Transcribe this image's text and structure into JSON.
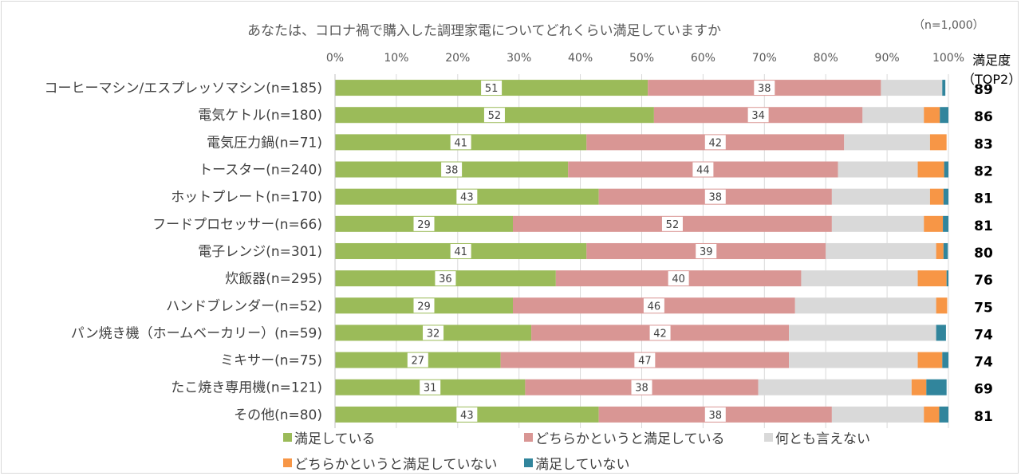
{
  "chart_data": {
    "type": "bar",
    "orientation": "horizontal",
    "stacked": "percent",
    "title": "あなたは、コロナ禍で購入した調理家電についてどれくらい満足していますか",
    "sample_note": "（n=1,000）",
    "xlim": [
      0,
      100
    ],
    "x_ticks": [
      "0%",
      "10%",
      "20%",
      "30%",
      "40%",
      "50%",
      "60%",
      "70%",
      "80%",
      "90%",
      "100%"
    ],
    "grid": true,
    "legend_position": "bottom",
    "categories": [
      "コーヒーマシン/エスプレッソマシン(n=185)",
      "電気ケトル(n=180)",
      "電気圧力鍋(n=71)",
      "トースター(n=240)",
      "ホットプレート(n=170)",
      "フードプロセッサー(n=66)",
      "電子レンジ(n=301)",
      "炊飯器(n=295)",
      "ハンドブレンダー(n=52)",
      "パン焼き機（ホームベーカリー）(n=59)",
      "ミキサー(n=75)",
      "たこ焼き専用機(n=121)",
      "その他(n=80)"
    ],
    "series": [
      {
        "name": "満足している",
        "color": "#9bbb59",
        "labeled": true,
        "values": [
          51,
          52,
          41,
          38,
          43,
          29,
          41,
          36,
          29,
          32,
          27,
          31,
          43
        ]
      },
      {
        "name": "どちらかというと満足している",
        "color": "#d99694",
        "labeled": true,
        "values": [
          38,
          34,
          42,
          44,
          38,
          52,
          39,
          40,
          46,
          42,
          47,
          38,
          38
        ]
      },
      {
        "name": "何とも言えない",
        "color": "#d9d9d9",
        "labeled": false,
        "values": [
          10,
          10,
          14,
          13,
          16,
          15,
          18,
          19,
          23,
          24,
          21,
          25,
          15
        ]
      },
      {
        "name": "どちらかというと満足していない",
        "color": "#f79646",
        "labeled": false,
        "values": [
          0,
          2.6,
          2.7,
          4.3,
          2.2,
          3.1,
          1.2,
          4.7,
          1.8,
          0,
          4,
          2.4,
          2.5
        ]
      },
      {
        "name": "満足していない",
        "color": "#31859c",
        "labeled": false,
        "values": [
          0.5,
          1.5,
          0,
          1.2,
          1.8,
          1.5,
          0.7,
          0.6,
          0,
          1.6,
          1.2,
          3.3,
          2.5
        ]
      }
    ],
    "top2_header": [
      "満足度",
      "（TOP2）"
    ],
    "top2_values": [
      89,
      86,
      83,
      82,
      81,
      81,
      80,
      76,
      75,
      74,
      74,
      69,
      81
    ]
  }
}
